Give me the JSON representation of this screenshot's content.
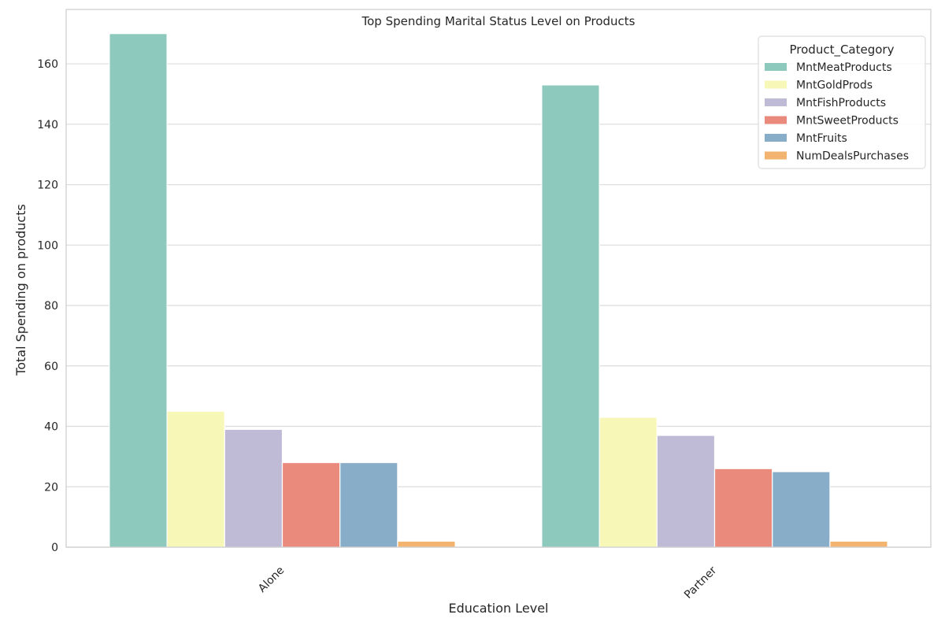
{
  "chart_data": {
    "type": "bar",
    "title": "Top Spending Marital Status Level on Products",
    "xlabel": "Education Level",
    "ylabel": "Total Spending on products",
    "categories": [
      "Alone",
      "Partner"
    ],
    "ylim": [
      0,
      178
    ],
    "yticks": [
      0,
      20,
      40,
      60,
      80,
      100,
      120,
      140,
      160
    ],
    "grid": true,
    "legend": {
      "title": "Product_Category",
      "placement": "top-right"
    },
    "series": [
      {
        "name": "MntMeatProducts",
        "color": "#8dc9bd",
        "values": [
          170,
          153
        ]
      },
      {
        "name": "MntGoldProds",
        "color": "#f7f7b8",
        "values": [
          45,
          43
        ]
      },
      {
        "name": "MntFishProducts",
        "color": "#bfbbd6",
        "values": [
          39,
          37
        ]
      },
      {
        "name": "MntSweetProducts",
        "color": "#ea8a7d",
        "values": [
          28,
          26
        ]
      },
      {
        "name": "MntFruits",
        "color": "#88adc9",
        "values": [
          28,
          25
        ]
      },
      {
        "name": "NumDealsPurchases",
        "color": "#f2b46e",
        "values": [
          2,
          2
        ]
      }
    ]
  }
}
